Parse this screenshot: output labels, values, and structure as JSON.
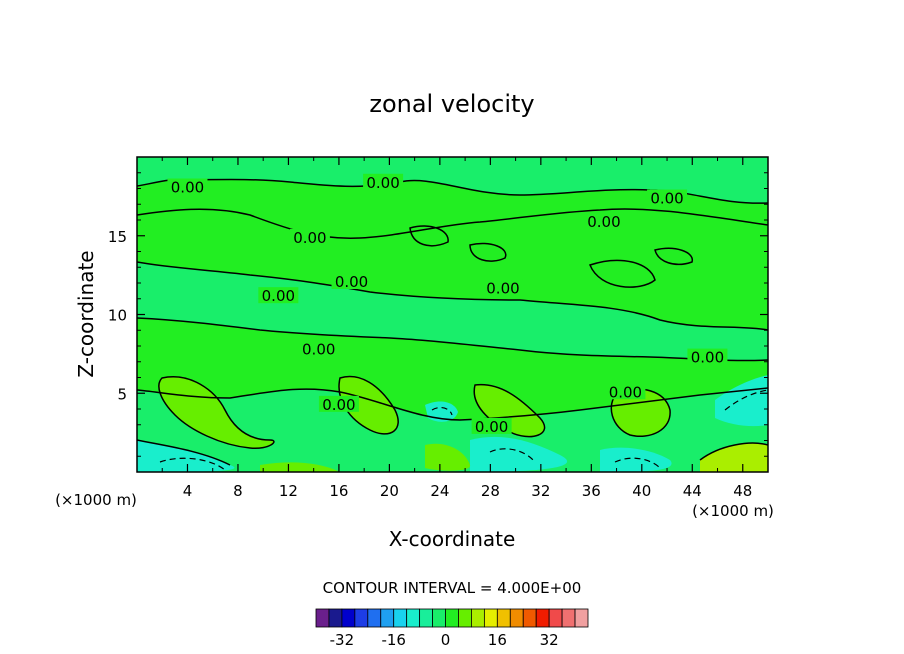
{
  "chart_data": {
    "type": "contour",
    "title": "zonal velocity",
    "xlabel": "X-coordinate",
    "ylabel": "Z-coordinate",
    "x_unit_note": "(×1000 m)",
    "z_unit_note": "(×1000 m)",
    "xlim": [
      0,
      50
    ],
    "ylim": [
      0,
      20
    ],
    "x_ticks": [
      4,
      8,
      12,
      16,
      20,
      24,
      28,
      32,
      36,
      40,
      44,
      48
    ],
    "y_ticks": [
      5,
      10,
      15
    ],
    "contour_label": "0.00",
    "contour_labels": [
      {
        "text": "0.00",
        "x": 4.0,
        "y": 18.0
      },
      {
        "text": "0.00",
        "x": 19.5,
        "y": 18.3
      },
      {
        "text": "0.00",
        "x": 42.0,
        "y": 17.3
      },
      {
        "text": "0.00",
        "x": 37.0,
        "y": 15.8
      },
      {
        "text": "0.00",
        "x": 13.7,
        "y": 14.8
      },
      {
        "text": "0.00",
        "x": 17.0,
        "y": 12.0
      },
      {
        "text": "0.00",
        "x": 11.2,
        "y": 11.1
      },
      {
        "text": "0.00",
        "x": 29.0,
        "y": 11.6
      },
      {
        "text": "0.00",
        "x": 14.4,
        "y": 7.7
      },
      {
        "text": "0.00",
        "x": 45.2,
        "y": 7.2
      },
      {
        "text": "0.00",
        "x": 38.7,
        "y": 5.0
      },
      {
        "text": "0.00",
        "x": 16.0,
        "y": 4.2
      },
      {
        "text": "0.00",
        "x": 28.1,
        "y": 2.8
      }
    ],
    "contour_interval_text": "CONTOUR INTERVAL = 4.000E+00",
    "colorbar": {
      "colors": [
        "#6a1f8c",
        "#1a1a8e",
        "#0000cc",
        "#1d3de6",
        "#1f6ff0",
        "#1fa0f0",
        "#19d2ee",
        "#19eecc",
        "#19ee9a",
        "#19ee6a",
        "#22ee22",
        "#66ee00",
        "#aaee00",
        "#e6ee00",
        "#f0c000",
        "#f08c00",
        "#f05a00",
        "#f01c00",
        "#f04a4a",
        "#f07070",
        "#f0a0a0"
      ],
      "tick_labels": [
        "-32",
        "-16",
        "0",
        "16",
        "32"
      ],
      "tick_values": [
        -32,
        -16,
        0,
        16,
        32
      ]
    }
  }
}
